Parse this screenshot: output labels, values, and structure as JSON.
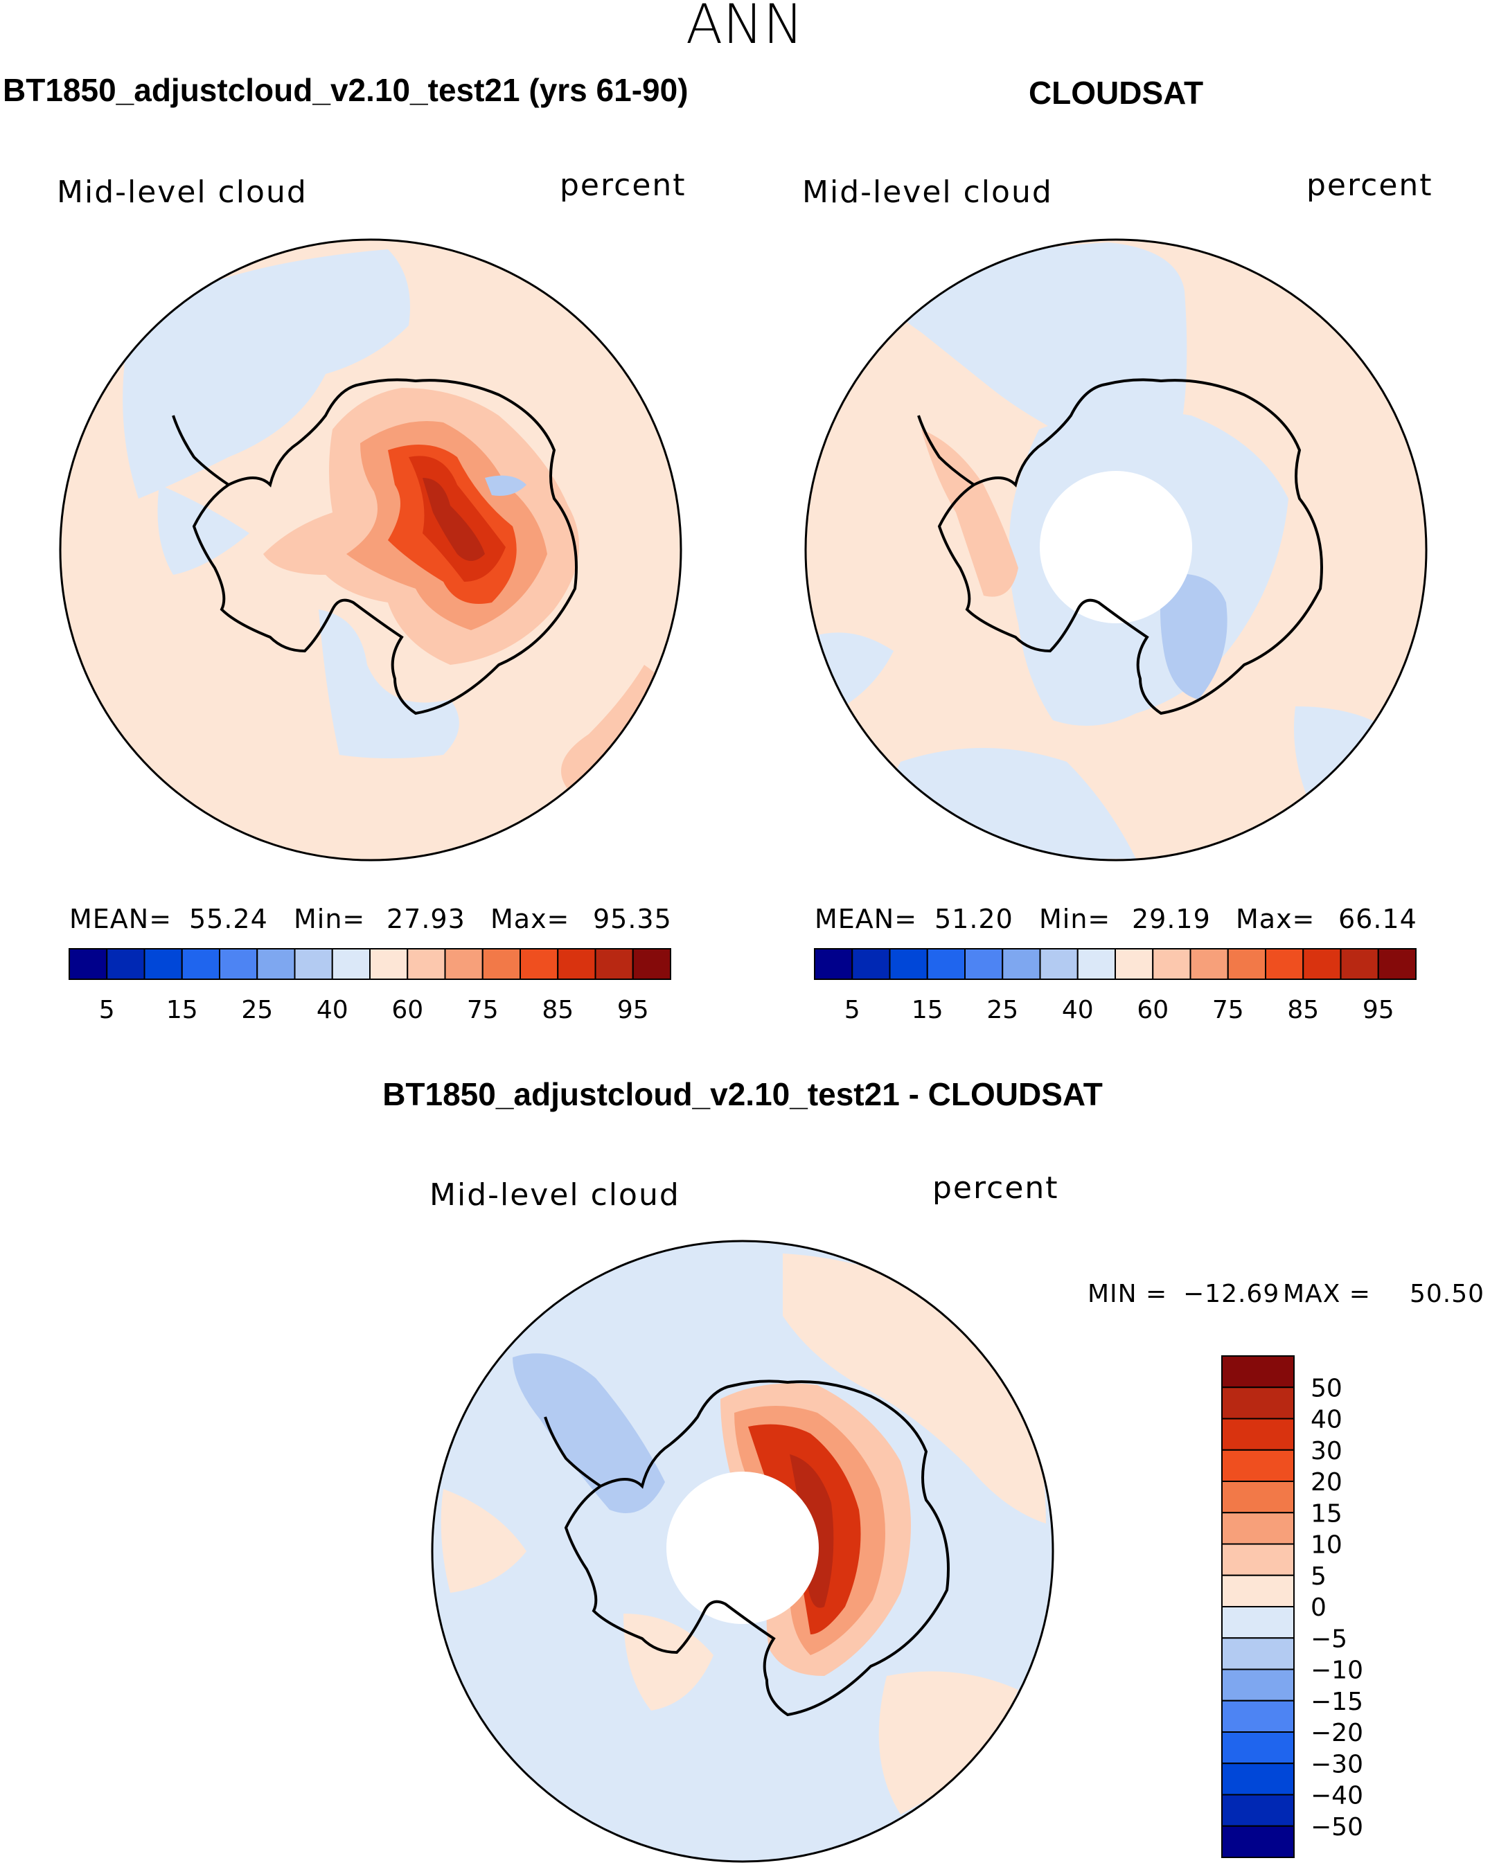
{
  "chart_data": [
    {
      "type": "heatmap",
      "projection": "south-polar-stereographic",
      "season": "ANN",
      "title": "BT1850_adjustcloud_v2.10_test21 (yrs 61-90)",
      "variable": "Mid-level cloud",
      "units": "percent",
      "stats": {
        "mean_label": "MEAN=",
        "mean": "55.24",
        "min_label": "Min=",
        "min": "27.93",
        "max_label": "Max=",
        "max": "95.35"
      },
      "colorbar": {
        "levels": [
          5,
          10,
          15,
          20,
          25,
          30,
          40,
          50,
          60,
          70,
          75,
          80,
          85,
          90,
          95
        ],
        "tick_labels": [
          "5",
          "15",
          "25",
          "40",
          "60",
          "75",
          "85",
          "95"
        ],
        "colors": [
          "#00008b",
          "#0028b4",
          "#0047d8",
          "#1f65ee",
          "#4d84f3",
          "#7ea7f0",
          "#b3cbf2",
          "#dbe8f8",
          "#fde6d6",
          "#fcc8ae",
          "#f7a07a",
          "#f27948",
          "#ef4f1f",
          "#d9330f",
          "#b82812",
          "#850a0a"
        ]
      }
    },
    {
      "type": "heatmap",
      "projection": "south-polar-stereographic",
      "season": "ANN",
      "title": "CLOUDSAT",
      "variable": "Mid-level cloud",
      "units": "percent",
      "stats": {
        "mean_label": "MEAN=",
        "mean": "51.20",
        "min_label": "Min=",
        "min": "29.19",
        "max_label": "Max=",
        "max": "66.14"
      },
      "colorbar": {
        "levels": [
          5,
          10,
          15,
          20,
          25,
          30,
          40,
          50,
          60,
          70,
          75,
          80,
          85,
          90,
          95
        ],
        "tick_labels": [
          "5",
          "15",
          "25",
          "40",
          "60",
          "75",
          "85",
          "95"
        ],
        "colors": [
          "#00008b",
          "#0028b4",
          "#0047d8",
          "#1f65ee",
          "#4d84f3",
          "#7ea7f0",
          "#b3cbf2",
          "#dbe8f8",
          "#fde6d6",
          "#fcc8ae",
          "#f7a07a",
          "#f27948",
          "#ef4f1f",
          "#d9330f",
          "#b82812",
          "#850a0a"
        ]
      }
    },
    {
      "type": "heatmap",
      "projection": "south-polar-stereographic",
      "season": "ANN",
      "title": "BT1850_adjustcloud_v2.10_test21 - CLOUDSAT",
      "variable": "Mid-level cloud",
      "units": "percent",
      "stats": {
        "min_label": "MIN =",
        "min": "−12.69",
        "max_label": "MAX =",
        "max": "50.50"
      },
      "colorbar": {
        "levels": [
          50,
          40,
          30,
          20,
          15,
          10,
          5,
          0,
          -5,
          -10,
          -15,
          -20,
          -30,
          -40,
          -50
        ],
        "tick_labels": [
          "50",
          "40",
          "30",
          "20",
          "15",
          "10",
          "5",
          "0",
          "−5",
          "−10",
          "−15",
          "−20",
          "−30",
          "−40",
          "−50"
        ],
        "colors": [
          "#850a0a",
          "#b82812",
          "#d9330f",
          "#ef4f1f",
          "#f27948",
          "#f7a07a",
          "#fcc8ae",
          "#fde6d6",
          "#dbe8f8",
          "#b3cbf2",
          "#7ea7f0",
          "#4d84f3",
          "#1f65ee",
          "#0047d8",
          "#0028b4",
          "#00008b"
        ]
      }
    }
  ],
  "page": {
    "season_title": "ANN"
  }
}
